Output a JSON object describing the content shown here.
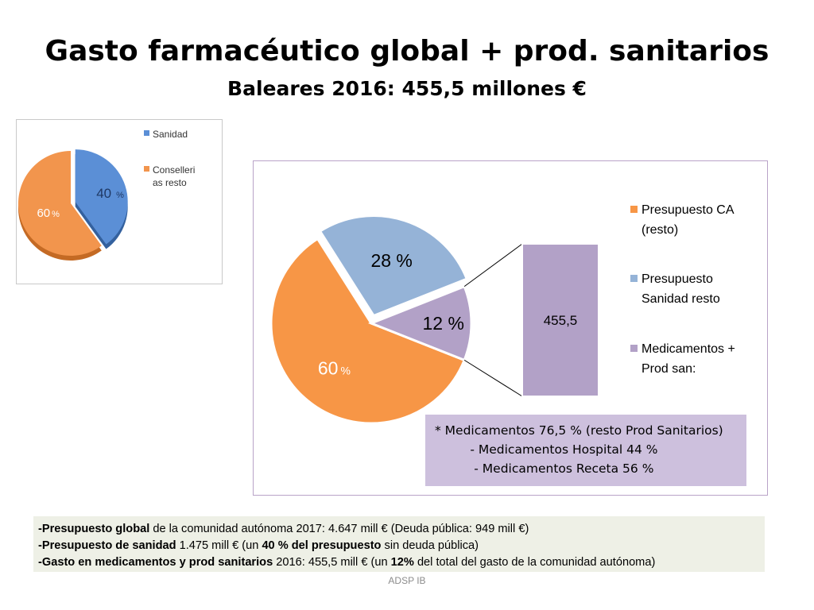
{
  "title": "Gasto farmacéutico global + prod. sanitarios",
  "subtitle": "Baleares 2016: 455,5 millones €",
  "chart_data": [
    {
      "type": "pie",
      "series": [
        {
          "name": "Sanidad",
          "value": 40,
          "label_value": "40",
          "label_unit": "%",
          "color": "#5b8fd6"
        },
        {
          "name": "Conselleri as resto",
          "value": 60,
          "label_value": "60",
          "label_unit": "%",
          "color": "#f2954d"
        }
      ],
      "legend": [
        "Sanidad",
        "Conselleri",
        "as resto"
      ],
      "legend_position": "right"
    },
    {
      "type": "pie",
      "series": [
        {
          "name": "Presupuesto CA (resto)",
          "value": 60,
          "label_value": "60",
          "label_unit": "%",
          "color": "#f79646"
        },
        {
          "name": "Presupuesto Sanidad resto",
          "value": 28,
          "label_value": "28 %",
          "color": "#95b3d7"
        },
        {
          "name": "Medicamentos + Prod san:",
          "value": 12,
          "label_value": "12 %",
          "color": "#b2a1c7"
        }
      ],
      "breakout_bar": {
        "label": "455,5",
        "color": "#b2a1c7"
      },
      "legend": [
        {
          "lines": [
            "Presupuesto CA",
            "(resto)"
          ],
          "color": "#f79646"
        },
        {
          "lines": [
            "Presupuesto",
            "Sanidad resto"
          ],
          "color": "#95b3d7"
        },
        {
          "lines": [
            "Medicamentos +",
            "Prod san:"
          ],
          "color": "#b2a1c7"
        }
      ],
      "legend_position": "right"
    }
  ],
  "note": {
    "lines": [
      "* Medicamentos 76,5 % (resto Prod Sanitarios)",
      "         - Medicamentos Hospital 44 %",
      "          - Medicamentos Receta 56 %"
    ]
  },
  "footer": {
    "line1": {
      "b1": "-Presupuesto global",
      "t1": " de la comunidad autónoma 2017: 4.647 mill €   (Deuda pública: 949 mill €)"
    },
    "line2": {
      "b1": "-Presupuesto de sanidad",
      "t1": " 1.475 mill € (un ",
      "b2": "40 % del presupuesto",
      "t2": " sin deuda pública)"
    },
    "line3": {
      "b1": "-Gasto en medicamentos y prod sanitarios",
      "t1": " 2016: 455,5 mill € (un ",
      "b2": "12%",
      "t2": " del total del gasto de la comunidad autónoma)"
    }
  },
  "credit": "ADSP IB"
}
